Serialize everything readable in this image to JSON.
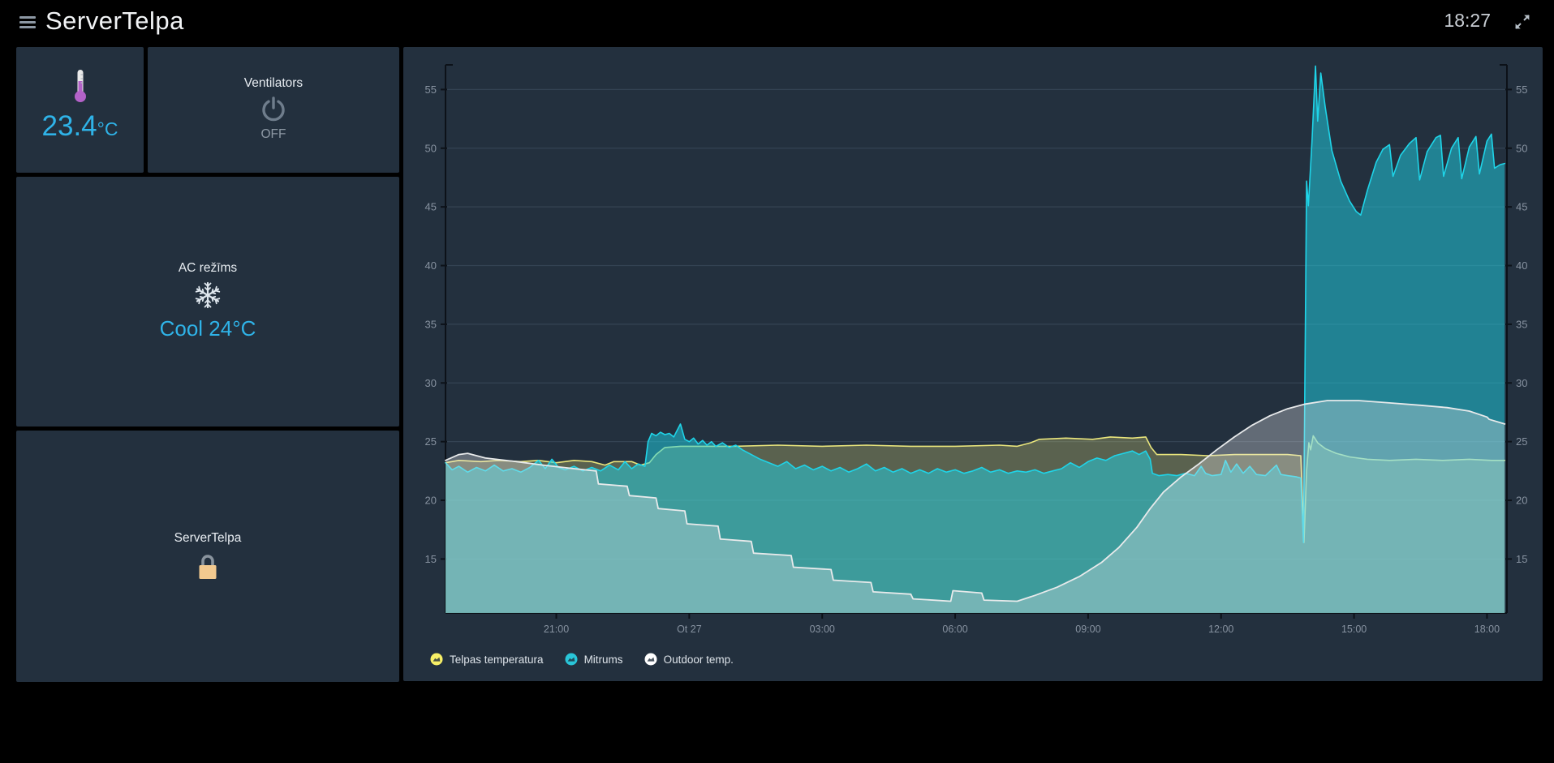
{
  "header": {
    "title": "ServerTelpa",
    "time": "18:27"
  },
  "cards": {
    "temperature": {
      "value": "23.4",
      "unit": "°C",
      "accent_color": "#2fb3e8"
    },
    "ventilators": {
      "title": "Ventilators",
      "state": "OFF"
    },
    "ac": {
      "title": "AC režīms",
      "state": "Cool 24°C",
      "accent_color": "#2fb3e8"
    },
    "lock": {
      "title": "ServerTelpa"
    }
  },
  "icons": {
    "thermometer_color": "#b362c8",
    "power_color": "#6f7d8c",
    "snowflake_color": "#dfe7ee",
    "lock_body_color": "#f2c98f",
    "lock_shackle_color": "#8a949e"
  },
  "chart_data": {
    "type": "area",
    "title": "",
    "xlabel": "",
    "ylabel": "",
    "x_unit": "hours since 18:30 (previous day)",
    "xlim": [
      0,
      23.95
    ],
    "ylim": [
      10.4,
      57.1
    ],
    "y_ticks": [
      15,
      20,
      25,
      30,
      35,
      40,
      45,
      50,
      55
    ],
    "x_ticks": [
      {
        "t": 2.5,
        "label": "21:00"
      },
      {
        "t": 5.5,
        "label": "Ot 27"
      },
      {
        "t": 8.5,
        "label": "03:00"
      },
      {
        "t": 11.5,
        "label": "06:00"
      },
      {
        "t": 14.5,
        "label": "09:00"
      },
      {
        "t": 17.5,
        "label": "12:00"
      },
      {
        "t": 20.5,
        "label": "15:00"
      },
      {
        "t": 23.5,
        "label": "18:00"
      }
    ],
    "grid": true,
    "legend_position": "bottom",
    "series": [
      {
        "name": "Telpas temperatura",
        "color": "#e9e57c",
        "legend_color": "#f7ef67",
        "fill_opacity": 0.28,
        "line_width": 1.6,
        "points": [
          [
            0,
            23.2
          ],
          [
            0.3,
            23.4
          ],
          [
            0.8,
            23.3
          ],
          [
            1.2,
            23.4
          ],
          [
            1.7,
            23.3
          ],
          [
            2.1,
            23.4
          ],
          [
            2.5,
            23.2
          ],
          [
            2.9,
            23.4
          ],
          [
            3.3,
            23.3
          ],
          [
            3.6,
            23.0
          ],
          [
            3.8,
            23.3
          ],
          [
            4.2,
            23.3
          ],
          [
            4.4,
            23.0
          ],
          [
            4.6,
            23.2
          ],
          [
            4.75,
            23.9
          ],
          [
            4.95,
            24.5
          ],
          [
            5.3,
            24.6
          ],
          [
            6.5,
            24.6
          ],
          [
            7.5,
            24.7
          ],
          [
            8.5,
            24.6
          ],
          [
            9.5,
            24.7
          ],
          [
            10.5,
            24.6
          ],
          [
            11.5,
            24.6
          ],
          [
            12.5,
            24.7
          ],
          [
            12.9,
            24.6
          ],
          [
            13.2,
            24.9
          ],
          [
            13.4,
            25.2
          ],
          [
            14.0,
            25.3
          ],
          [
            14.6,
            25.2
          ],
          [
            15.0,
            25.4
          ],
          [
            15.5,
            25.3
          ],
          [
            15.8,
            25.4
          ],
          [
            15.92,
            24.5
          ],
          [
            16.05,
            23.9
          ],
          [
            16.6,
            23.9
          ],
          [
            17.2,
            23.8
          ],
          [
            17.8,
            23.9
          ],
          [
            18.4,
            23.9
          ],
          [
            19.0,
            23.9
          ],
          [
            19.3,
            23.8
          ],
          [
            19.37,
            16.4
          ],
          [
            19.43,
            22.5
          ],
          [
            19.48,
            24.9
          ],
          [
            19.52,
            24.3
          ],
          [
            19.58,
            25.5
          ],
          [
            19.68,
            24.9
          ],
          [
            19.85,
            24.4
          ],
          [
            20.1,
            24.0
          ],
          [
            20.4,
            23.7
          ],
          [
            20.8,
            23.5
          ],
          [
            21.3,
            23.4
          ],
          [
            21.9,
            23.5
          ],
          [
            22.5,
            23.4
          ],
          [
            23.1,
            23.5
          ],
          [
            23.6,
            23.4
          ],
          [
            23.9,
            23.4
          ]
        ]
      },
      {
        "name": "Mitrums",
        "color": "#1fd4e8",
        "legend_color": "#29c5d8",
        "fill_opacity": 0.5,
        "line_width": 1.6,
        "points": [
          [
            0,
            23.2
          ],
          [
            0.15,
            22.6
          ],
          [
            0.3,
            22.9
          ],
          [
            0.5,
            22.4
          ],
          [
            0.7,
            22.8
          ],
          [
            0.9,
            22.5
          ],
          [
            1.1,
            23.0
          ],
          [
            1.3,
            22.5
          ],
          [
            1.5,
            22.7
          ],
          [
            1.7,
            22.4
          ],
          [
            1.9,
            22.8
          ],
          [
            2.1,
            23.4
          ],
          [
            2.25,
            22.7
          ],
          [
            2.4,
            23.5
          ],
          [
            2.55,
            22.8
          ],
          [
            2.7,
            22.6
          ],
          [
            2.9,
            22.9
          ],
          [
            3.1,
            22.5
          ],
          [
            3.3,
            22.8
          ],
          [
            3.5,
            22.5
          ],
          [
            3.7,
            23.0
          ],
          [
            3.9,
            22.6
          ],
          [
            4.05,
            23.3
          ],
          [
            4.2,
            22.7
          ],
          [
            4.35,
            23.1
          ],
          [
            4.5,
            22.9
          ],
          [
            4.57,
            25.0
          ],
          [
            4.65,
            25.7
          ],
          [
            4.75,
            25.5
          ],
          [
            4.85,
            25.8
          ],
          [
            4.95,
            25.6
          ],
          [
            5.05,
            25.7
          ],
          [
            5.15,
            25.4
          ],
          [
            5.3,
            26.5
          ],
          [
            5.4,
            25.2
          ],
          [
            5.5,
            25.0
          ],
          [
            5.6,
            25.3
          ],
          [
            5.7,
            24.8
          ],
          [
            5.8,
            25.1
          ],
          [
            5.9,
            24.7
          ],
          [
            6.0,
            25.0
          ],
          [
            6.1,
            24.6
          ],
          [
            6.25,
            24.9
          ],
          [
            6.4,
            24.5
          ],
          [
            6.55,
            24.7
          ],
          [
            6.7,
            24.3
          ],
          [
            6.9,
            23.9
          ],
          [
            7.1,
            23.5
          ],
          [
            7.3,
            23.2
          ],
          [
            7.5,
            22.9
          ],
          [
            7.7,
            23.3
          ],
          [
            7.9,
            22.7
          ],
          [
            8.1,
            23.0
          ],
          [
            8.3,
            22.6
          ],
          [
            8.5,
            22.9
          ],
          [
            8.7,
            22.5
          ],
          [
            8.9,
            22.8
          ],
          [
            9.1,
            22.4
          ],
          [
            9.3,
            22.7
          ],
          [
            9.5,
            23.1
          ],
          [
            9.7,
            22.5
          ],
          [
            9.9,
            22.8
          ],
          [
            10.1,
            22.4
          ],
          [
            10.3,
            22.7
          ],
          [
            10.5,
            22.3
          ],
          [
            10.7,
            22.6
          ],
          [
            10.9,
            22.3
          ],
          [
            11.1,
            22.7
          ],
          [
            11.3,
            22.4
          ],
          [
            11.5,
            22.6
          ],
          [
            11.7,
            22.3
          ],
          [
            11.9,
            22.5
          ],
          [
            12.1,
            22.8
          ],
          [
            12.3,
            22.4
          ],
          [
            12.5,
            22.6
          ],
          [
            12.7,
            22.3
          ],
          [
            12.9,
            22.5
          ],
          [
            13.1,
            22.4
          ],
          [
            13.3,
            22.6
          ],
          [
            13.5,
            22.3
          ],
          [
            13.7,
            22.5
          ],
          [
            13.9,
            22.7
          ],
          [
            14.1,
            23.2
          ],
          [
            14.3,
            22.8
          ],
          [
            14.5,
            23.3
          ],
          [
            14.7,
            23.6
          ],
          [
            14.9,
            23.4
          ],
          [
            15.1,
            23.8
          ],
          [
            15.3,
            24.0
          ],
          [
            15.5,
            24.2
          ],
          [
            15.65,
            23.9
          ],
          [
            15.8,
            24.2
          ],
          [
            15.9,
            23.5
          ],
          [
            15.95,
            22.3
          ],
          [
            16.1,
            22.1
          ],
          [
            16.3,
            22.2
          ],
          [
            16.5,
            22.1
          ],
          [
            16.7,
            22.3
          ],
          [
            16.9,
            22.1
          ],
          [
            17.05,
            22.9
          ],
          [
            17.15,
            22.3
          ],
          [
            17.3,
            22.1
          ],
          [
            17.5,
            22.2
          ],
          [
            17.6,
            23.4
          ],
          [
            17.72,
            22.4
          ],
          [
            17.85,
            23.1
          ],
          [
            18.0,
            22.3
          ],
          [
            18.15,
            22.9
          ],
          [
            18.3,
            22.2
          ],
          [
            18.5,
            22.1
          ],
          [
            18.75,
            23.0
          ],
          [
            18.85,
            22.2
          ],
          [
            19.0,
            22.1
          ],
          [
            19.2,
            22.0
          ],
          [
            19.3,
            21.9
          ],
          [
            19.36,
            16.4
          ],
          [
            19.4,
            34.0
          ],
          [
            19.43,
            47.2
          ],
          [
            19.47,
            45.1
          ],
          [
            19.55,
            50.5
          ],
          [
            19.63,
            57.0
          ],
          [
            19.68,
            52.3
          ],
          [
            19.75,
            56.4
          ],
          [
            19.85,
            53.5
          ],
          [
            20.0,
            49.8
          ],
          [
            20.2,
            47.2
          ],
          [
            20.4,
            45.5
          ],
          [
            20.55,
            44.6
          ],
          [
            20.65,
            44.3
          ],
          [
            20.8,
            46.4
          ],
          [
            21.0,
            48.8
          ],
          [
            21.15,
            49.9
          ],
          [
            21.3,
            50.3
          ],
          [
            21.38,
            47.6
          ],
          [
            21.55,
            49.4
          ],
          [
            21.75,
            50.4
          ],
          [
            21.9,
            50.9
          ],
          [
            21.98,
            47.3
          ],
          [
            22.15,
            49.7
          ],
          [
            22.35,
            50.9
          ],
          [
            22.45,
            51.1
          ],
          [
            22.52,
            47.6
          ],
          [
            22.7,
            50.0
          ],
          [
            22.85,
            50.9
          ],
          [
            22.93,
            47.4
          ],
          [
            23.1,
            50.1
          ],
          [
            23.25,
            51.0
          ],
          [
            23.33,
            47.8
          ],
          [
            23.5,
            50.6
          ],
          [
            23.6,
            51.2
          ],
          [
            23.67,
            48.3
          ],
          [
            23.8,
            48.6
          ],
          [
            23.9,
            48.7
          ]
        ]
      },
      {
        "name": "Outdoor temp.",
        "color": "#e8eaeb",
        "legend_color": "#ffffff",
        "fill_opacity": 0.32,
        "line_width": 1.8,
        "points": [
          [
            0,
            23.4
          ],
          [
            0.3,
            23.9
          ],
          [
            0.5,
            24.0
          ],
          [
            0.9,
            23.6
          ],
          [
            1.6,
            23.3
          ],
          [
            2.2,
            23.0
          ],
          [
            2.9,
            22.7
          ],
          [
            3.4,
            22.5
          ],
          [
            3.45,
            21.4
          ],
          [
            4.1,
            21.2
          ],
          [
            4.15,
            20.4
          ],
          [
            4.75,
            20.2
          ],
          [
            4.8,
            19.3
          ],
          [
            5.4,
            19.1
          ],
          [
            5.45,
            18.0
          ],
          [
            6.15,
            17.8
          ],
          [
            6.2,
            16.7
          ],
          [
            6.9,
            16.5
          ],
          [
            6.95,
            15.5
          ],
          [
            7.8,
            15.3
          ],
          [
            7.85,
            14.3
          ],
          [
            8.7,
            14.1
          ],
          [
            8.75,
            13.2
          ],
          [
            9.6,
            13.0
          ],
          [
            9.65,
            12.2
          ],
          [
            10.5,
            12.0
          ],
          [
            10.55,
            11.6
          ],
          [
            11.4,
            11.4
          ],
          [
            11.45,
            12.3
          ],
          [
            12.1,
            12.1
          ],
          [
            12.15,
            11.5
          ],
          [
            12.9,
            11.4
          ],
          [
            13.3,
            11.9
          ],
          [
            13.8,
            12.6
          ],
          [
            14.3,
            13.5
          ],
          [
            14.8,
            14.7
          ],
          [
            15.2,
            16.0
          ],
          [
            15.6,
            17.7
          ],
          [
            15.9,
            19.3
          ],
          [
            16.2,
            20.7
          ],
          [
            16.6,
            22.0
          ],
          [
            17.0,
            23.1
          ],
          [
            17.4,
            24.3
          ],
          [
            17.8,
            25.4
          ],
          [
            18.2,
            26.4
          ],
          [
            18.6,
            27.2
          ],
          [
            19.0,
            27.8
          ],
          [
            19.4,
            28.2
          ],
          [
            19.9,
            28.5
          ],
          [
            20.6,
            28.5
          ],
          [
            21.3,
            28.3
          ],
          [
            22.0,
            28.1
          ],
          [
            22.6,
            27.9
          ],
          [
            23.1,
            27.6
          ],
          [
            23.5,
            27.1
          ],
          [
            23.55,
            26.9
          ],
          [
            23.9,
            26.5
          ]
        ]
      }
    ],
    "style": {
      "grid_color": "rgba(146,168,190,0.16)",
      "axis_color": "#0c1118",
      "tick_label_color": "#8792a0"
    }
  }
}
